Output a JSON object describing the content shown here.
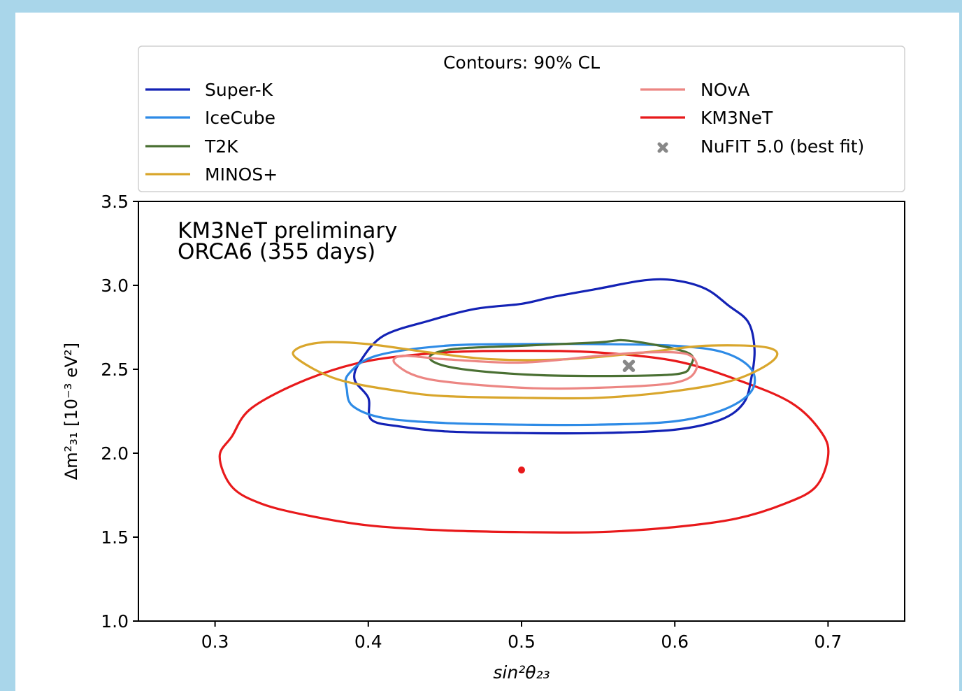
{
  "chart_data": {
    "type": "contour",
    "title": "",
    "annotation": [
      "KM3NeT preliminary",
      "ORCA6 (355 days)"
    ],
    "legend": {
      "title": "Contours: 90% CL",
      "placement": "top",
      "entries": [
        "Super-K",
        "IceCube",
        "T2K",
        "MINOS+",
        "NOvA",
        "KM3NeT",
        "NuFIT 5.0 (best fit)"
      ]
    },
    "xlabel": "sin²θ₂₃",
    "ylabel": "Δm²₃₁ [10⁻³ eV²]",
    "xlim": [
      0.25,
      0.75
    ],
    "ylim": [
      1.0,
      3.5
    ],
    "xticks": [
      0.3,
      0.4,
      0.5,
      0.6,
      0.7
    ],
    "xtick_labels": [
      "0.3",
      "0.4",
      "0.5",
      "0.6",
      "0.7"
    ],
    "yticks": [
      1.0,
      1.5,
      2.0,
      2.5,
      3.0,
      3.5
    ],
    "ytick_labels": [
      "1.0",
      "1.5",
      "2.0",
      "2.5",
      "3.0",
      "3.5"
    ],
    "grid": false,
    "series": [
      {
        "name": "KM3NeT",
        "color": "#e8191b",
        "points": [
          [
            0.5,
            1.53
          ],
          [
            0.55,
            1.53
          ],
          [
            0.6,
            1.56
          ],
          [
            0.64,
            1.61
          ],
          [
            0.672,
            1.7
          ],
          [
            0.692,
            1.8
          ],
          [
            0.7,
            1.98
          ],
          [
            0.696,
            2.12
          ],
          [
            0.676,
            2.3
          ],
          [
            0.64,
            2.44
          ],
          [
            0.6,
            2.55
          ],
          [
            0.55,
            2.6
          ],
          [
            0.5,
            2.61
          ],
          [
            0.45,
            2.6
          ],
          [
            0.4,
            2.55
          ],
          [
            0.36,
            2.44
          ],
          [
            0.324,
            2.27
          ],
          [
            0.311,
            2.1
          ],
          [
            0.303,
            1.98
          ],
          [
            0.311,
            1.8
          ],
          [
            0.33,
            1.7
          ],
          [
            0.36,
            1.63
          ],
          [
            0.4,
            1.57
          ],
          [
            0.45,
            1.54
          ]
        ]
      },
      {
        "name": "Super-K",
        "color": "#1322b5",
        "points": [
          [
            0.4,
            2.33
          ],
          [
            0.402,
            2.2
          ],
          [
            0.42,
            2.16
          ],
          [
            0.45,
            2.13
          ],
          [
            0.5,
            2.12
          ],
          [
            0.55,
            2.12
          ],
          [
            0.6,
            2.14
          ],
          [
            0.63,
            2.2
          ],
          [
            0.645,
            2.3
          ],
          [
            0.65,
            2.45
          ],
          [
            0.652,
            2.62
          ],
          [
            0.648,
            2.78
          ],
          [
            0.635,
            2.88
          ],
          [
            0.62,
            2.98
          ],
          [
            0.6,
            3.03
          ],
          [
            0.58,
            3.03
          ],
          [
            0.55,
            2.98
          ],
          [
            0.52,
            2.93
          ],
          [
            0.5,
            2.89
          ],
          [
            0.47,
            2.86
          ],
          [
            0.44,
            2.79
          ],
          [
            0.41,
            2.7
          ],
          [
            0.395,
            2.55
          ],
          [
            0.391,
            2.44
          ]
        ]
      },
      {
        "name": "IceCube",
        "color": "#2e8be6",
        "points": [
          [
            0.386,
            2.38
          ],
          [
            0.39,
            2.28
          ],
          [
            0.41,
            2.21
          ],
          [
            0.45,
            2.18
          ],
          [
            0.5,
            2.17
          ],
          [
            0.55,
            2.17
          ],
          [
            0.6,
            2.19
          ],
          [
            0.632,
            2.26
          ],
          [
            0.65,
            2.37
          ],
          [
            0.65,
            2.5
          ],
          [
            0.632,
            2.6
          ],
          [
            0.6,
            2.64
          ],
          [
            0.55,
            2.65
          ],
          [
            0.5,
            2.65
          ],
          [
            0.45,
            2.64
          ],
          [
            0.405,
            2.58
          ],
          [
            0.387,
            2.47
          ]
        ]
      },
      {
        "name": "T2K",
        "color": "#4a7033",
        "points": [
          [
            0.44,
            2.57
          ],
          [
            0.455,
            2.51
          ],
          [
            0.5,
            2.47
          ],
          [
            0.55,
            2.46
          ],
          [
            0.6,
            2.47
          ],
          [
            0.61,
            2.52
          ],
          [
            0.608,
            2.6
          ],
          [
            0.57,
            2.67
          ],
          [
            0.55,
            2.66
          ],
          [
            0.5,
            2.64
          ],
          [
            0.455,
            2.62
          ]
        ]
      },
      {
        "name": "MINOS+",
        "color": "#d9a62c",
        "points": [
          [
            0.354,
            2.56
          ],
          [
            0.38,
            2.44
          ],
          [
            0.42,
            2.37
          ],
          [
            0.45,
            2.34
          ],
          [
            0.5,
            2.33
          ],
          [
            0.55,
            2.33
          ],
          [
            0.6,
            2.37
          ],
          [
            0.64,
            2.44
          ],
          [
            0.665,
            2.56
          ],
          [
            0.66,
            2.63
          ],
          [
            0.62,
            2.64
          ],
          [
            0.58,
            2.6
          ],
          [
            0.53,
            2.56
          ],
          [
            0.48,
            2.56
          ],
          [
            0.44,
            2.6
          ],
          [
            0.4,
            2.65
          ],
          [
            0.37,
            2.66
          ],
          [
            0.353,
            2.62
          ]
        ]
      },
      {
        "name": "NOvA",
        "color": "#ec8683",
        "points": [
          [
            0.418,
            2.53
          ],
          [
            0.44,
            2.44
          ],
          [
            0.5,
            2.39
          ],
          [
            0.55,
            2.39
          ],
          [
            0.6,
            2.42
          ],
          [
            0.614,
            2.5
          ],
          [
            0.608,
            2.59
          ],
          [
            0.58,
            2.6
          ],
          [
            0.55,
            2.58
          ],
          [
            0.5,
            2.54
          ],
          [
            0.45,
            2.56
          ],
          [
            0.422,
            2.58
          ]
        ]
      }
    ],
    "markers": [
      {
        "name": "KM3NeT best fit",
        "x": 0.5,
        "y": 1.9,
        "color": "#e8191b",
        "shape": "dot"
      },
      {
        "name": "NuFIT 5.0 (best fit)",
        "x": 0.57,
        "y": 2.52,
        "color": "#888888",
        "shape": "x"
      }
    ]
  }
}
